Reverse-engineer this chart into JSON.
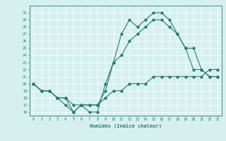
{
  "title": "",
  "xlabel": "Humidex (Indice chaleur)",
  "ylabel": "",
  "bg_color": "#d6f0f0",
  "line_color": "#2d7a6e",
  "grid_color": "#ffffff",
  "xlim": [
    -0.5,
    23.5
  ],
  "ylim": [
    15.5,
    31.0
  ],
  "xticks": [
    0,
    1,
    2,
    3,
    4,
    5,
    6,
    7,
    8,
    9,
    10,
    11,
    12,
    13,
    14,
    15,
    16,
    17,
    18,
    19,
    20,
    21,
    22,
    23
  ],
  "yticks": [
    16,
    17,
    18,
    19,
    20,
    21,
    22,
    23,
    24,
    25,
    26,
    27,
    28,
    29,
    30
  ],
  "line1_x": [
    0,
    1,
    2,
    3,
    4,
    5,
    6,
    7,
    8,
    9,
    10,
    11,
    12,
    13,
    14,
    15,
    16,
    17,
    18,
    19,
    20,
    21,
    22,
    23
  ],
  "line1_y": [
    20,
    19,
    19,
    18,
    17,
    16,
    17,
    16,
    16,
    20,
    23,
    27,
    29,
    28,
    29,
    30,
    30,
    29,
    27,
    25,
    25,
    22,
    21,
    21
  ],
  "line2_x": [
    0,
    1,
    2,
    3,
    4,
    5,
    6,
    7,
    8,
    9,
    10,
    11,
    12,
    13,
    14,
    15,
    16,
    17,
    18,
    19,
    20,
    21,
    22,
    23
  ],
  "line2_y": [
    20,
    19,
    19,
    18,
    18,
    16,
    17,
    17,
    17,
    19,
    23,
    24,
    26,
    27,
    28,
    29,
    29,
    28,
    27,
    25,
    22,
    22,
    21,
    21
  ],
  "line3_x": [
    0,
    1,
    2,
    3,
    4,
    5,
    6,
    7,
    8,
    9,
    10,
    11,
    12,
    13,
    14,
    15,
    16,
    17,
    18,
    19,
    20,
    21,
    22,
    23
  ],
  "line3_y": [
    20,
    19,
    19,
    18,
    18,
    17,
    17,
    17,
    17,
    18,
    19,
    19,
    20,
    20,
    20,
    21,
    21,
    21,
    21,
    21,
    21,
    21,
    22,
    22
  ]
}
